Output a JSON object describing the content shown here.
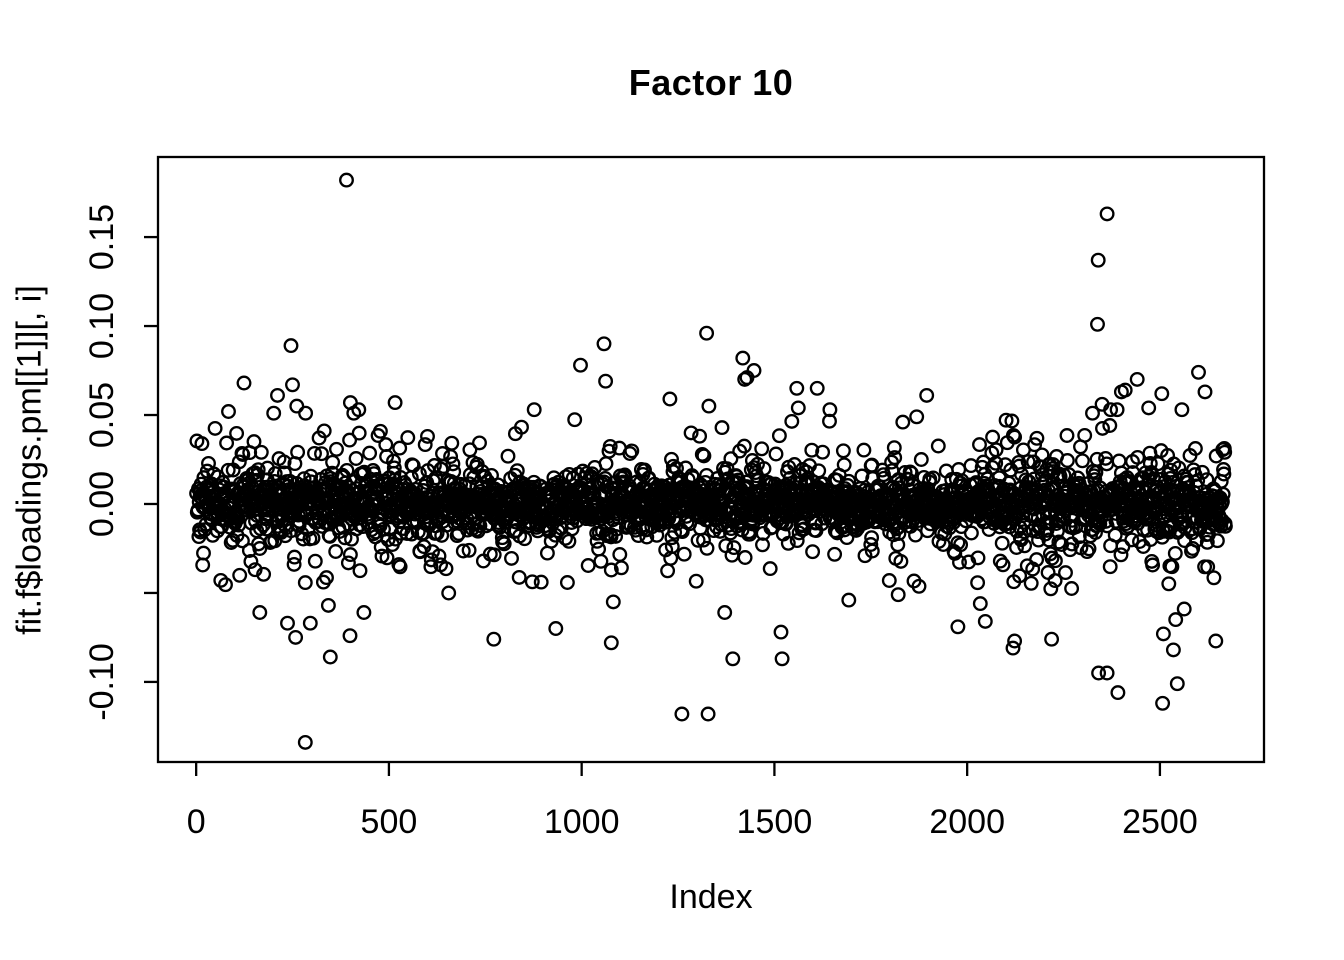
{
  "page": {
    "background": "#ffffff",
    "foreground": "#000000"
  },
  "chart_data": {
    "type": "scatter",
    "title": "Factor 10",
    "xlabel": "Index",
    "ylabel": "fit.f$loadings.pm[[1]][, i]",
    "legend": "none",
    "grid": "off",
    "box": "on",
    "marker": {
      "shape": "open-circle",
      "radius_px": 6.3,
      "stroke_px": 2.3,
      "color": "#000000"
    },
    "xlim": [
      -99,
      2770
    ],
    "ylim": [
      -0.145,
      0.195
    ],
    "x_ticks": [
      {
        "v": 0,
        "label": "0"
      },
      {
        "v": 500,
        "label": "500"
      },
      {
        "v": 1000,
        "label": "1000"
      },
      {
        "v": 1500,
        "label": "1500"
      },
      {
        "v": 2000,
        "label": "2000"
      },
      {
        "v": 2500,
        "label": "2500"
      }
    ],
    "y_ticks": [
      {
        "v": 0.15,
        "label": "0.15"
      },
      {
        "v": 0.1,
        "label": "0.10"
      },
      {
        "v": 0.05,
        "label": "0.05"
      },
      {
        "v": 0.0,
        "label": "0.00"
      },
      {
        "v": -0.05,
        "label": ""
      },
      {
        "v": -0.1,
        "label": "-0.10"
      }
    ],
    "n_points": 2670,
    "x_is_index": true,
    "core_distribution": {
      "comment": "dense overplotted band centered on 0; mixture of normals, clamped",
      "seed": 1234,
      "mixture": [
        {
          "weight": 0.7,
          "sd": 0.0075
        },
        {
          "weight": 0.22,
          "sd": 0.016
        },
        {
          "weight": 0.08,
          "sd": 0.03
        }
      ],
      "clamp_abs": 0.048,
      "spread_profile": [
        {
          "x_up_to": 550,
          "factor": 1.15
        },
        {
          "x_up_to": 2050,
          "factor": 1.0
        },
        {
          "x_up_to": 2700,
          "factor": 1.25
        }
      ]
    },
    "outliers": [
      [
        390,
        0.182
      ],
      [
        2363,
        0.163
      ],
      [
        2340,
        0.137
      ],
      [
        2338,
        0.101
      ],
      [
        1324,
        0.096
      ],
      [
        1058,
        0.09
      ],
      [
        246,
        0.089
      ],
      [
        1418,
        0.082
      ],
      [
        997,
        0.078
      ],
      [
        1447,
        0.075
      ],
      [
        2600,
        0.074
      ],
      [
        1423,
        0.07
      ],
      [
        1429,
        0.071
      ],
      [
        2441,
        0.07
      ],
      [
        124,
        0.068
      ],
      [
        1062,
        0.069
      ],
      [
        250,
        0.067
      ],
      [
        1611,
        0.065
      ],
      [
        2617,
        0.063
      ],
      [
        2505,
        0.062
      ],
      [
        2410,
        0.064
      ],
      [
        2400,
        0.063
      ],
      [
        1558,
        0.065
      ],
      [
        211,
        0.061
      ],
      [
        1895,
        0.061
      ],
      [
        1229,
        0.059
      ],
      [
        516,
        0.057
      ],
      [
        400,
        0.057
      ],
      [
        2350,
        0.056
      ],
      [
        877,
        0.053
      ],
      [
        1562,
        0.054
      ],
      [
        2471,
        0.054
      ],
      [
        2557,
        0.053
      ],
      [
        261,
        0.055
      ],
      [
        201,
        0.051
      ],
      [
        409,
        0.051
      ],
      [
        422,
        0.053
      ],
      [
        284,
        0.051
      ],
      [
        2372,
        0.053
      ],
      [
        2389,
        0.053
      ],
      [
        2325,
        0.051
      ],
      [
        84,
        0.052
      ],
      [
        1330,
        0.055
      ],
      [
        1644,
        0.053
      ],
      [
        1869,
        0.049
      ],
      [
        283,
        -0.134
      ],
      [
        1260,
        -0.118
      ],
      [
        1328,
        -0.118
      ],
      [
        2507,
        -0.112
      ],
      [
        2391,
        -0.106
      ],
      [
        2545,
        -0.101
      ],
      [
        2341,
        -0.095
      ],
      [
        2363,
        -0.095
      ],
      [
        1392,
        -0.087
      ],
      [
        348,
        -0.086
      ],
      [
        1520,
        -0.087
      ],
      [
        2535,
        -0.082
      ],
      [
        2119,
        -0.081
      ],
      [
        1077,
        -0.078
      ],
      [
        2123,
        -0.077
      ],
      [
        772,
        -0.076
      ],
      [
        2219,
        -0.076
      ],
      [
        258,
        -0.075
      ],
      [
        399,
        -0.074
      ],
      [
        2509,
        -0.073
      ],
      [
        1517,
        -0.072
      ],
      [
        933,
        -0.07
      ],
      [
        1976,
        -0.069
      ],
      [
        237,
        -0.067
      ],
      [
        296,
        -0.067
      ],
      [
        2541,
        -0.065
      ],
      [
        2047,
        -0.066
      ],
      [
        165,
        -0.061
      ],
      [
        435,
        -0.061
      ],
      [
        1371,
        -0.061
      ],
      [
        1082,
        -0.055
      ],
      [
        2034,
        -0.056
      ],
      [
        2563,
        -0.059
      ],
      [
        1693,
        -0.054
      ],
      [
        1821,
        -0.051
      ],
      [
        2645,
        -0.077
      ],
      [
        655,
        -0.05
      ],
      [
        343,
        -0.057
      ]
    ]
  }
}
